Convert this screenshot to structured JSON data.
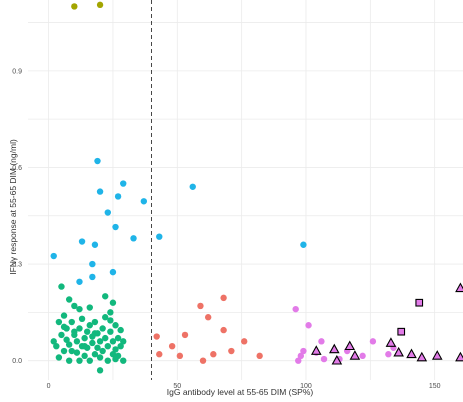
{
  "chart_data": {
    "type": "scatter",
    "title": "",
    "xlabel": "IgG antibody level at 55-65 DIM (SP%)",
    "ylabel": "IFNγ response at 55-65 DIM (ng/ml)",
    "xlim": [
      -8,
      161
    ],
    "ylim": [
      -0.06,
      1.12
    ],
    "x_ticks": [
      0,
      50,
      100,
      150
    ],
    "y_ticks": [
      0.0,
      0.3,
      0.6,
      0.9
    ],
    "y_tick_labels": [
      "0.0",
      "0.3",
      "0.6",
      "0.9"
    ],
    "grid": true,
    "legend": "none",
    "cutoff_line_x": 40,
    "series": [
      {
        "marker": "circle",
        "color": "#a3a500",
        "points": [
          [
            10,
            1.1
          ],
          [
            20,
            1.105
          ]
        ]
      },
      {
        "marker": "circle",
        "color": "#1fb4e8",
        "points": [
          [
            2,
            0.325
          ],
          [
            12,
            0.245
          ],
          [
            13,
            0.37
          ],
          [
            17,
            0.3
          ],
          [
            17,
            0.26
          ],
          [
            18,
            0.36
          ],
          [
            19,
            0.62
          ],
          [
            20,
            0.525
          ],
          [
            23,
            0.46
          ],
          [
            25,
            0.275
          ],
          [
            26,
            0.415
          ],
          [
            27,
            0.51
          ],
          [
            29,
            0.55
          ],
          [
            33,
            0.38
          ],
          [
            37,
            0.495
          ],
          [
            43,
            0.385
          ],
          [
            56,
            0.54
          ],
          [
            99,
            0.36
          ]
        ]
      },
      {
        "marker": "circle",
        "color": "#12b87d",
        "points": [
          [
            3,
            0.045
          ],
          [
            4,
            0.12
          ],
          [
            4,
            0.01
          ],
          [
            5,
            0.08
          ],
          [
            5,
            0.23
          ],
          [
            6,
            0.03
          ],
          [
            6,
            0.14
          ],
          [
            7,
            0.065
          ],
          [
            7,
            0.1
          ],
          [
            8,
            0.0
          ],
          [
            8,
            0.05
          ],
          [
            9,
            0.12
          ],
          [
            9,
            0.03
          ],
          [
            10,
            0.08
          ],
          [
            10,
            0.17
          ],
          [
            11,
            0.06
          ],
          [
            11,
            0.025
          ],
          [
            12,
            0.1
          ],
          [
            12,
            0.0
          ],
          [
            13,
            0.045
          ],
          [
            13,
            0.13
          ],
          [
            14,
            0.07
          ],
          [
            14,
            0.015
          ],
          [
            15,
            0.09
          ],
          [
            15,
            0.04
          ],
          [
            16,
            0.11
          ],
          [
            16,
            0.0
          ],
          [
            17,
            0.055
          ],
          [
            17,
            0.075
          ],
          [
            18,
            0.02
          ],
          [
            18,
            0.12
          ],
          [
            19,
            0.04
          ],
          [
            19,
            0.085
          ],
          [
            20,
            0.01
          ],
          [
            20,
            0.06
          ],
          [
            21,
            0.1
          ],
          [
            21,
            0.03
          ],
          [
            22,
            0.07
          ],
          [
            22,
            0.135
          ],
          [
            23,
            0.045
          ],
          [
            23,
            0.0
          ],
          [
            24,
            0.09
          ],
          [
            24,
            0.15
          ],
          [
            25,
            0.02
          ],
          [
            25,
            0.06
          ],
          [
            26,
            0.11
          ],
          [
            26,
            0.035
          ],
          [
            27,
            0.07
          ],
          [
            27,
            0.015
          ],
          [
            28,
            0.095
          ],
          [
            28,
            0.045
          ],
          [
            29,
            0.0
          ],
          [
            22,
            0.2
          ],
          [
            25,
            0.18
          ],
          [
            8,
            0.19
          ],
          [
            12,
            0.16
          ],
          [
            16,
            0.165
          ],
          [
            6,
            0.105
          ],
          [
            18,
            0.085
          ],
          [
            26,
            0.005
          ],
          [
            2,
            0.06
          ],
          [
            14,
            0.045
          ],
          [
            20,
            -0.03
          ],
          [
            29,
            0.06
          ],
          [
            24,
            0.125
          ],
          [
            10,
            0.09
          ]
        ]
      },
      {
        "marker": "circle",
        "color": "#ee7266",
        "points": [
          [
            42,
            0.075
          ],
          [
            43,
            0.02
          ],
          [
            48,
            0.045
          ],
          [
            51,
            0.015
          ],
          [
            53,
            0.08
          ],
          [
            59,
            0.17
          ],
          [
            60,
            0.0
          ],
          [
            62,
            0.135
          ],
          [
            64,
            0.02
          ],
          [
            68,
            0.095
          ],
          [
            68,
            0.195
          ],
          [
            71,
            0.03
          ],
          [
            76,
            0.06
          ],
          [
            82,
            0.015
          ]
        ]
      },
      {
        "marker": "circle",
        "color": "#e27be8",
        "points": [
          [
            96,
            0.16
          ],
          [
            97,
            0.0
          ],
          [
            98,
            0.015
          ],
          [
            99,
            0.03
          ],
          [
            101,
            0.11
          ],
          [
            104,
            0.025
          ],
          [
            106,
            0.06
          ],
          [
            107,
            0.005
          ],
          [
            113,
            0.005
          ],
          [
            116,
            0.03
          ],
          [
            122,
            0.015
          ],
          [
            126,
            0.06
          ],
          [
            132,
            0.02
          ],
          [
            134,
            0.04
          ]
        ]
      },
      {
        "marker": "triangle",
        "color": "#e27be8",
        "points": [
          [
            104,
            0.03
          ],
          [
            111,
            0.035
          ],
          [
            112,
            0.0
          ],
          [
            117,
            0.045
          ],
          [
            119,
            0.015
          ],
          [
            133,
            0.055
          ],
          [
            136,
            0.025
          ],
          [
            141,
            0.02
          ],
          [
            145,
            0.01
          ],
          [
            151,
            0.015
          ],
          [
            160,
            0.225
          ],
          [
            160,
            0.01
          ]
        ]
      },
      {
        "marker": "square",
        "color": "#e27be8",
        "points": [
          [
            137,
            0.09
          ],
          [
            144,
            0.18
          ]
        ]
      }
    ]
  }
}
